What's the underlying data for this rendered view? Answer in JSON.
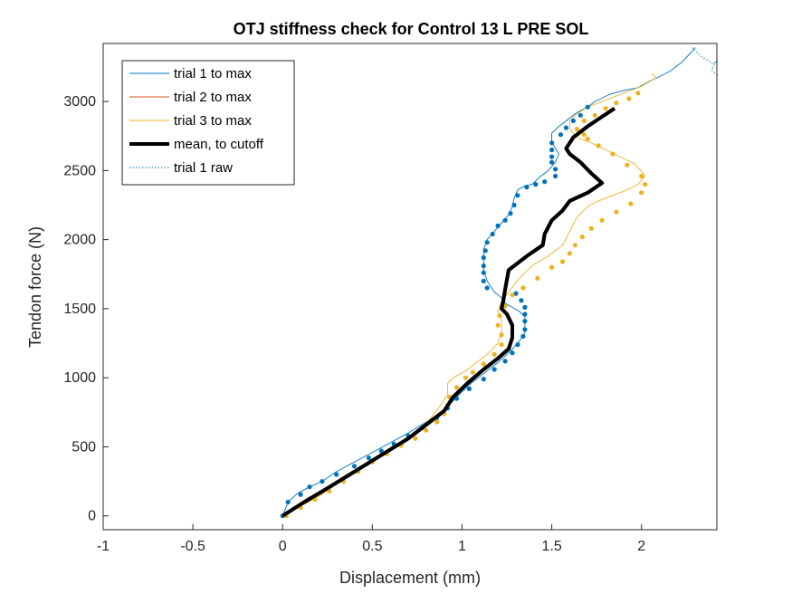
{
  "chart_data": {
    "type": "line",
    "title": "OTJ stiffness check for Control 13 L PRE SOL",
    "xlabel": "Displacement (mm)",
    "ylabel": "Tendon force (N)",
    "xlim": [
      -1,
      2.42
    ],
    "ylim": [
      -100,
      3420
    ],
    "xticks": [
      -1,
      -0.5,
      0,
      0.5,
      1,
      1.5,
      2
    ],
    "xtick_labels": [
      "-1",
      "-0.5",
      "0",
      "0.5",
      "1",
      "1.5",
      "2"
    ],
    "yticks": [
      0,
      500,
      1000,
      1500,
      2000,
      2500,
      3000
    ],
    "ytick_labels": [
      "0",
      "500",
      "1000",
      "1500",
      "2000",
      "2500",
      "3000"
    ],
    "grid": false,
    "legend_position": "top-left",
    "series": [
      {
        "name": "trial 1 to max",
        "color": "#0072BD",
        "style": "line",
        "x": [
          0,
          0.03,
          0.08,
          0.15,
          0.22,
          0.3,
          0.4,
          0.5,
          0.6,
          0.7,
          0.8,
          0.9,
          0.97,
          1.05,
          1.13,
          1.2,
          1.26,
          1.31,
          1.35,
          1.35,
          1.35,
          1.32,
          1.28,
          1.24,
          1.22,
          1.18,
          1.14,
          1.12,
          1.12,
          1.12,
          1.14,
          1.18,
          1.22,
          1.26,
          1.28,
          1.29,
          1.31,
          1.35,
          1.39,
          1.43,
          1.48,
          1.52,
          1.54,
          1.52,
          1.5,
          1.5,
          1.54,
          1.58,
          1.64,
          1.7,
          1.74,
          1.82,
          1.9,
          1.98,
          2.05,
          2.1,
          2.16,
          2.22,
          2.28,
          2.3
        ],
        "y": [
          0,
          100,
          160,
          210,
          250,
          320,
          390,
          460,
          530,
          600,
          680,
          760,
          860,
          960,
          1040,
          1110,
          1180,
          1250,
          1320,
          1380,
          1440,
          1480,
          1510,
          1540,
          1580,
          1620,
          1700,
          1780,
          1860,
          1930,
          2000,
          2060,
          2120,
          2180,
          2240,
          2300,
          2360,
          2390,
          2400,
          2450,
          2500,
          2560,
          2620,
          2660,
          2710,
          2770,
          2820,
          2860,
          2920,
          2960,
          3000,
          3050,
          3080,
          3100,
          3150,
          3180,
          3220,
          3280,
          3360,
          3390
        ]
      },
      {
        "name": "trial 2 to max",
        "color": "#D95319",
        "style": "line",
        "x": [],
        "y": []
      },
      {
        "name": "trial 3 to max",
        "color": "#EDB120",
        "style": "line",
        "x": [
          0,
          0.1,
          0.2,
          0.3,
          0.4,
          0.5,
          0.58,
          0.66,
          0.74,
          0.82,
          0.88,
          0.92,
          0.92,
          0.95,
          1.02,
          1.08,
          1.14,
          1.2,
          1.22,
          1.22,
          1.2,
          1.22,
          1.26,
          1.3,
          1.34,
          1.4,
          1.48,
          1.56,
          1.6,
          1.64,
          1.7,
          1.76,
          1.84,
          1.92,
          1.98,
          2.02,
          2.01,
          1.96,
          1.88,
          1.8,
          1.72,
          1.64,
          1.6,
          1.6,
          1.64,
          1.7,
          1.76,
          1.82,
          1.88,
          1.94,
          2.0,
          2.04,
          2.08,
          2.06
        ],
        "y": [
          0,
          70,
          140,
          230,
          310,
          390,
          460,
          530,
          610,
          700,
          800,
          880,
          960,
          1000,
          1050,
          1110,
          1170,
          1250,
          1330,
          1410,
          1480,
          1550,
          1620,
          1690,
          1750,
          1820,
          1880,
          1960,
          2060,
          2160,
          2240,
          2280,
          2320,
          2360,
          2400,
          2460,
          2480,
          2550,
          2600,
          2650,
          2700,
          2740,
          2800,
          2860,
          2910,
          2960,
          2990,
          3020,
          3050,
          3080,
          3110,
          3140,
          3170,
          3200
        ]
      },
      {
        "name": "mean, to cutoff",
        "color": "#000000",
        "style": "bold",
        "x": [
          0,
          0.12,
          0.25,
          0.4,
          0.55,
          0.7,
          0.82,
          0.9,
          0.95,
          1.03,
          1.12,
          1.2,
          1.26,
          1.28,
          1.28,
          1.25,
          1.22,
          1.23,
          1.24,
          1.26,
          1.36,
          1.45,
          1.46,
          1.5,
          1.56,
          1.6,
          1.7,
          1.78,
          1.72,
          1.66,
          1.6,
          1.58,
          1.62,
          1.7,
          1.78,
          1.85
        ],
        "y": [
          0,
          100,
          200,
          320,
          440,
          560,
          680,
          760,
          860,
          960,
          1060,
          1140,
          1210,
          1290,
          1380,
          1460,
          1500,
          1560,
          1640,
          1780,
          1880,
          1960,
          2040,
          2140,
          2210,
          2280,
          2340,
          2410,
          2480,
          2560,
          2620,
          2660,
          2740,
          2820,
          2890,
          2950
        ]
      },
      {
        "name": "trial 1 raw",
        "color": "#0072BD",
        "style": "dotted",
        "x": [
          2.28,
          2.3,
          2.32,
          2.35,
          2.38,
          2.4,
          2.42,
          2.39,
          2.42
        ],
        "y": [
          3390,
          3370,
          3340,
          3310,
          3290,
          3270,
          3300,
          3230,
          3190
        ]
      }
    ],
    "markers": [
      {
        "series": "trial 1 to max",
        "color": "#0072BD",
        "x": [
          0,
          0.03,
          0.1,
          0.15,
          0.22,
          0.3,
          0.4,
          0.48,
          0.55,
          0.62,
          0.7,
          0.78,
          0.86,
          0.92,
          0.97,
          1.04,
          1.12,
          1.18,
          1.24,
          1.28,
          1.31,
          1.34,
          1.35,
          1.35,
          1.35,
          1.35,
          1.33,
          1.3,
          1.14,
          1.12,
          1.12,
          1.12,
          1.12,
          1.13,
          1.14,
          1.17,
          1.2,
          1.24,
          1.27,
          1.29,
          1.31,
          1.36,
          1.41,
          1.46,
          1.52,
          1.52,
          1.5,
          1.5,
          1.5,
          1.5,
          1.55,
          1.58,
          1.62,
          1.66,
          1.7
        ],
        "y": [
          0,
          100,
          155,
          210,
          250,
          300,
          360,
          420,
          470,
          520,
          580,
          640,
          710,
          780,
          850,
          920,
          990,
          1060,
          1120,
          1180,
          1240,
          1300,
          1350,
          1410,
          1460,
          1510,
          1560,
          1610,
          1650,
          1700,
          1760,
          1810,
          1870,
          1920,
          1980,
          2040,
          2100,
          2140,
          2190,
          2250,
          2320,
          2380,
          2400,
          2420,
          2460,
          2510,
          2560,
          2600,
          2650,
          2700,
          2760,
          2810,
          2860,
          2900,
          2960
        ]
      },
      {
        "series": "trial 3 to max",
        "color": "#EDB120",
        "x": [
          0.02,
          0.1,
          0.18,
          0.26,
          0.34,
          0.42,
          0.5,
          0.58,
          0.66,
          0.74,
          0.8,
          0.86,
          0.9,
          0.92,
          0.93,
          0.97,
          1.02,
          1.06,
          1.12,
          1.18,
          1.22,
          1.22,
          1.2,
          1.21,
          1.24,
          1.28,
          1.34,
          1.42,
          1.5,
          1.56,
          1.6,
          1.63,
          1.67,
          1.72,
          1.78,
          1.86,
          1.94,
          2.0,
          2.02,
          2.0,
          1.92,
          1.84,
          1.76,
          1.7,
          1.68,
          1.64,
          1.68,
          1.74,
          1.8,
          1.86,
          1.93,
          1.98
        ],
        "y": [
          0,
          60,
          120,
          180,
          250,
          320,
          390,
          450,
          510,
          560,
          620,
          680,
          740,
          800,
          860,
          930,
          1000,
          1040,
          1100,
          1170,
          1240,
          1310,
          1380,
          1450,
          1520,
          1600,
          1650,
          1720,
          1800,
          1840,
          1900,
          1960,
          2020,
          2080,
          2140,
          2200,
          2260,
          2340,
          2400,
          2460,
          2540,
          2620,
          2680,
          2730,
          2760,
          2800,
          2860,
          2900,
          2950,
          2990,
          3020,
          3060
        ]
      }
    ],
    "legend": [
      {
        "label": "trial 1 to max",
        "color": "#0072BD",
        "style": "line"
      },
      {
        "label": "trial 2 to max",
        "color": "#D95319",
        "style": "line"
      },
      {
        "label": "trial 3 to max",
        "color": "#EDB120",
        "style": "line"
      },
      {
        "label": "mean, to cutoff",
        "color": "#000000",
        "style": "bold"
      },
      {
        "label": "trial 1 raw",
        "color": "#0072BD",
        "style": "dotted"
      }
    ]
  }
}
